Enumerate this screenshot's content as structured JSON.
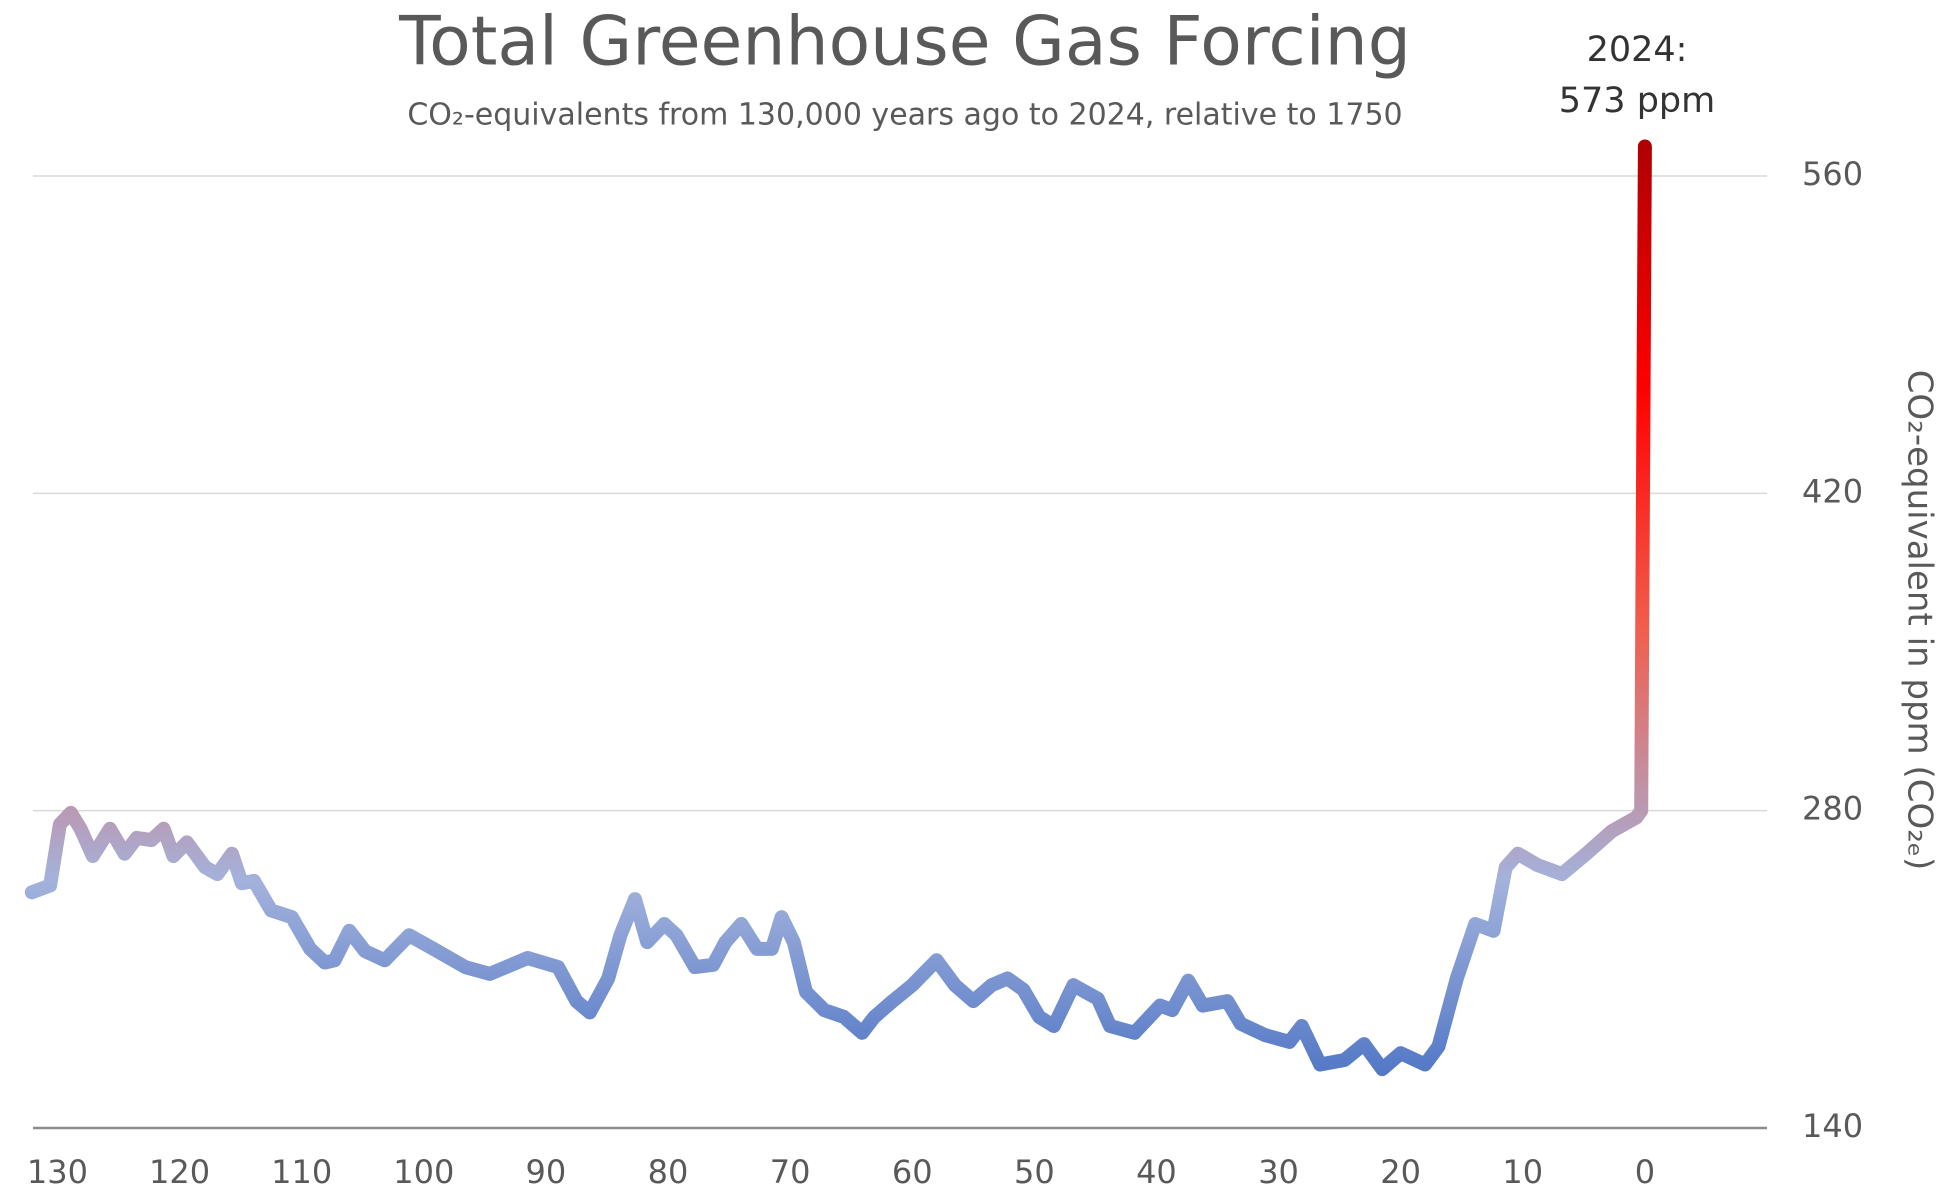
{
  "chart_data": {
    "type": "line",
    "title": "Total Greenhouse Gas Forcing",
    "subtitle": "CO₂-equivalents from 130,000 years ago to 2024, relative to 1750",
    "y_label": "CO₂-equivalent in ppm (CO₂ₑ)",
    "annotations": [
      "2024:",
      "573 ppm"
    ],
    "x": [
      132.1,
      130.6,
      129.8,
      128.9,
      128.1,
      127.1,
      125.7,
      124.5,
      123.5,
      122.3,
      121.3,
      120.5,
      119.4,
      117.9,
      116.9,
      115.7,
      114.9,
      113.9,
      112.5,
      110.8,
      109.3,
      108.1,
      107.3,
      106.1,
      104.8,
      103.2,
      101.2,
      99.2,
      96.6,
      94.6,
      91.5,
      89.0,
      87.5,
      86.4,
      84.9,
      83.9,
      82.7,
      81.7,
      80.3,
      79.3,
      77.8,
      76.3,
      75.3,
      74.0,
      72.7,
      71.5,
      70.7,
      69.7,
      68.7,
      67.2,
      65.6,
      64.1,
      63.1,
      61.6,
      60.0,
      58.0,
      56.5,
      55.0,
      53.5,
      52.2,
      50.9,
      49.6,
      48.4,
      46.8,
      44.8,
      43.8,
      41.8,
      39.7,
      38.7,
      37.4,
      36.2,
      34.2,
      33.1,
      31.1,
      29.1,
      28.1,
      26.6,
      24.6,
      23.0,
      21.5,
      20.0,
      18.0,
      16.9,
      15.4,
      13.9,
      12.4,
      11.4,
      10.4,
      8.8,
      6.8,
      4.8,
      2.7,
      0.7,
      0.3,
      0
    ],
    "series": [
      {
        "values": [
          244,
          247,
          274,
          279,
          272,
          260,
          272,
          261,
          268,
          267,
          272,
          260,
          266,
          255,
          252,
          261,
          248,
          249,
          236,
          233,
          219,
          213,
          214,
          227,
          218,
          214,
          225,
          219,
          211,
          208,
          215,
          211,
          196,
          191,
          206,
          225,
          241,
          222,
          230,
          225,
          211,
          212,
          222,
          230,
          219,
          219,
          233,
          222,
          200,
          192,
          189,
          182,
          189,
          196,
          203,
          214,
          203,
          196,
          203,
          206,
          201,
          189,
          185,
          203,
          197,
          185,
          182,
          194,
          192,
          205,
          194,
          196,
          186,
          181,
          178,
          185,
          168,
          170,
          177,
          166,
          173,
          168,
          176,
          206,
          230,
          227,
          255,
          261,
          256,
          252,
          261,
          271,
          277,
          280,
          573
        ],
        "colors": [
          "#3d68c0",
          "#a3b2dc",
          "#f06050",
          "#ff0000",
          "#b00000"
        ]
      }
    ],
    "xlim": [
      132,
      -10
    ],
    "xticks": [
      130,
      120,
      110,
      100,
      90,
      80,
      70,
      60,
      50,
      40,
      30,
      20,
      10,
      0
    ],
    "ylim": [
      140,
      575
    ],
    "yticks": [
      140,
      280,
      420,
      560
    ],
    "grid": true
  }
}
